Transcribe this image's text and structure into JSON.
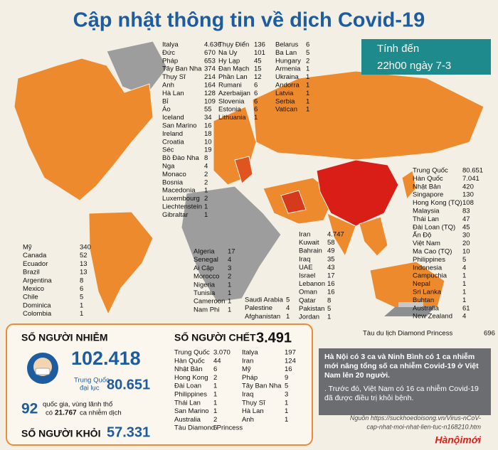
{
  "title": "Cập nhật thông tin về dịch Covid-19",
  "date_box": {
    "label": "Tính đến",
    "time": "22h00 ngày 7-3"
  },
  "map_lists": {
    "europe_1": [
      {
        "name": "Italya",
        "value": "4.636"
      },
      {
        "name": "Đức",
        "value": "670"
      },
      {
        "name": "Pháp",
        "value": "653"
      },
      {
        "name": "Tây Ban Nha",
        "value": "374"
      },
      {
        "name": "Thụy Sĩ",
        "value": "214"
      },
      {
        "name": "Anh",
        "value": "164"
      },
      {
        "name": "Hà Lan",
        "value": "128"
      },
      {
        "name": "Bỉ",
        "value": "109"
      },
      {
        "name": "Áo",
        "value": "55"
      },
      {
        "name": "Iceland",
        "value": "34"
      },
      {
        "name": "San Marino",
        "value": "16"
      },
      {
        "name": "Ireland",
        "value": "18"
      },
      {
        "name": "Croatia",
        "value": "10"
      },
      {
        "name": "Séc",
        "value": "19"
      },
      {
        "name": "Bồ Đào Nha",
        "value": "8"
      },
      {
        "name": "Nga",
        "value": "4"
      },
      {
        "name": "Monaco",
        "value": "2"
      },
      {
        "name": "Bosnia",
        "value": "2"
      },
      {
        "name": "Macedonia",
        "value": "1"
      },
      {
        "name": "Luxembourg",
        "value": "2"
      },
      {
        "name": "Liechtenstein",
        "value": "1"
      },
      {
        "name": "Gibraltar",
        "value": "1"
      }
    ],
    "europe_2": [
      {
        "name": "Thụy Điển",
        "value": "136"
      },
      {
        "name": "Na Uy",
        "value": "101"
      },
      {
        "name": "Hy Lạp",
        "value": "45"
      },
      {
        "name": "Đan Mạch",
        "value": "15"
      },
      {
        "name": "Phần Lan",
        "value": "12"
      },
      {
        "name": "Rumani",
        "value": "6"
      },
      {
        "name": "Azerbaijan",
        "value": "6"
      },
      {
        "name": "Slovenia",
        "value": "6"
      },
      {
        "name": "Estonia",
        "value": "6"
      },
      {
        "name": "Lithuania",
        "value": "1"
      }
    ],
    "europe_3": [
      {
        "name": "Belarus",
        "value": "6"
      },
      {
        "name": "Ba Lan",
        "value": "5"
      },
      {
        "name": "Hungary",
        "value": "2"
      },
      {
        "name": "Armenia",
        "value": "1"
      },
      {
        "name": "Ukraina",
        "value": "1"
      },
      {
        "name": "Andorra",
        "value": "1"
      },
      {
        "name": "Latvia",
        "value": "1"
      },
      {
        "name": "Serbia",
        "value": "1"
      },
      {
        "name": "Vatican",
        "value": "1"
      }
    ],
    "americas": [
      {
        "name": "Mỹ",
        "value": "340"
      },
      {
        "name": "Canada",
        "value": "52"
      },
      {
        "name": "Ecuador",
        "value": "13"
      },
      {
        "name": "Brazil",
        "value": "13"
      },
      {
        "name": "Argentina",
        "value": "8"
      },
      {
        "name": "Mexico",
        "value": "6"
      },
      {
        "name": "Chile",
        "value": "5"
      },
      {
        "name": "Dominica",
        "value": "1"
      },
      {
        "name": "Colombia",
        "value": "1"
      }
    ],
    "africa": [
      {
        "name": "Algeria",
        "value": "17"
      },
      {
        "name": "Senegal",
        "value": "4"
      },
      {
        "name": "Ai Cập",
        "value": "3"
      },
      {
        "name": "Morocco",
        "value": "2"
      },
      {
        "name": "Nigeria",
        "value": "1"
      },
      {
        "name": "Tunisia",
        "value": "1"
      },
      {
        "name": "Cameroon",
        "value": "1"
      },
      {
        "name": "Nam Phi",
        "value": "1"
      }
    ],
    "middle_east": [
      {
        "name": "Iran",
        "value": "4.747"
      },
      {
        "name": "Kuwait",
        "value": "58"
      },
      {
        "name": "Bahrain",
        "value": "49"
      },
      {
        "name": "Iraq",
        "value": "35"
      },
      {
        "name": "UAE",
        "value": "43"
      },
      {
        "name": "Israel",
        "value": "17"
      },
      {
        "name": "Lebanon",
        "value": "16"
      },
      {
        "name": "Oman",
        "value": "16"
      },
      {
        "name": "Qatar",
        "value": "8"
      },
      {
        "name": "Pakistan",
        "value": "5"
      },
      {
        "name": "Jordan",
        "value": "1"
      }
    ],
    "west_asia": [
      {
        "name": "Saudi Arabia",
        "value": "5"
      },
      {
        "name": "Palestine",
        "value": "4"
      },
      {
        "name": "Afghanistan",
        "value": "1"
      }
    ],
    "asia": [
      {
        "name": "Trung Quốc",
        "value": "80.651"
      },
      {
        "name": "Hàn Quốc",
        "value": "7.041"
      },
      {
        "name": "Nhật Bản",
        "value": "420"
      },
      {
        "name": "Singapore",
        "value": "130"
      },
      {
        "name": "Hong Kong (TQ)",
        "value": "108"
      },
      {
        "name": "Malaysia",
        "value": "83"
      },
      {
        "name": "Thái Lan",
        "value": "47"
      },
      {
        "name": "Đài Loan (TQ)",
        "value": "45"
      },
      {
        "name": "Ấn Độ",
        "value": "30"
      },
      {
        "name": "Việt Nam",
        "value": "20"
      },
      {
        "name": "Ma Cao (TQ)",
        "value": "10"
      },
      {
        "name": "Philippines",
        "value": "5"
      },
      {
        "name": "Indonesia",
        "value": "4"
      },
      {
        "name": "Campuchia",
        "value": "1"
      },
      {
        "name": "Nepal",
        "value": "1"
      },
      {
        "name": "Sri Lanka",
        "value": "1"
      },
      {
        "name": "Buhtan",
        "value": "1"
      },
      {
        "name": "Australia",
        "value": "61"
      },
      {
        "name": "New Zealand",
        "value": "4"
      }
    ]
  },
  "cruise": {
    "name": "Tàu du lịch Diamond Princess",
    "value": "696"
  },
  "summary": {
    "infected_label": "SỐ NGƯỜI NHIỄM",
    "infected_total": "102.418",
    "china_label_1": "Trung Quốc",
    "china_label_2": "đại lục",
    "china_value": "80.651",
    "countries_count": "92",
    "countries_text_1": "quốc gia, vùng lãnh thổ",
    "countries_text_2": "có",
    "countries_value": "21.767",
    "countries_text_3": "ca nhiễm dịch",
    "recovered_label": "SỐ NGƯỜI KHỎI",
    "recovered_total": "57.331"
  },
  "deaths": {
    "label": "SỐ NGƯỜI CHẾT",
    "total": "3.491",
    "col_1": [
      {
        "name": "Trung Quốc",
        "value": "3.070"
      },
      {
        "name": "Hàn Quốc",
        "value": "44"
      },
      {
        "name": "Nhật Bản",
        "value": "6"
      },
      {
        "name": "Hong Kong",
        "value": "2"
      },
      {
        "name": "Đài Loan",
        "value": "1"
      },
      {
        "name": "Philippines",
        "value": "1"
      },
      {
        "name": "Thái Lan",
        "value": "1"
      },
      {
        "name": "San Marino",
        "value": "1"
      },
      {
        "name": "Australia",
        "value": "2"
      },
      {
        "name": "Tàu Diamond Princess",
        "value": "6"
      }
    ],
    "col_2": [
      {
        "name": "Italya",
        "value": "197"
      },
      {
        "name": "Iran",
        "value": "124"
      },
      {
        "name": "Mỹ",
        "value": "16"
      },
      {
        "name": "Pháp",
        "value": "9"
      },
      {
        "name": "Tây Ban Nha",
        "value": "5"
      },
      {
        "name": "Iraq",
        "value": "3"
      },
      {
        "name": "Thụy Sĩ",
        "value": "1"
      },
      {
        "name": "Hà Lan",
        "value": "1"
      },
      {
        "name": "Anh",
        "value": "1"
      }
    ]
  },
  "note": {
    "text_1": "Hà Nội có 3 ca và Ninh Bình có 1 ca nhiễm mới nâng tổng số ca nhiễm Covid-19 ở Việt Nam lên 20 người.",
    "text_2": ". Trước đó, Việt Nam có 16 ca nhiễm Covid-19 đã được điều trị khỏi bệnh."
  },
  "source": {
    "label": "Nguồn",
    "url_1": "https://suckhoedoisong.vn/Virus-nCoV-",
    "url_2": "cap-nhat-moi-nhat-lien-tuc-n168210.htm"
  },
  "logo": "Hànộimới"
}
